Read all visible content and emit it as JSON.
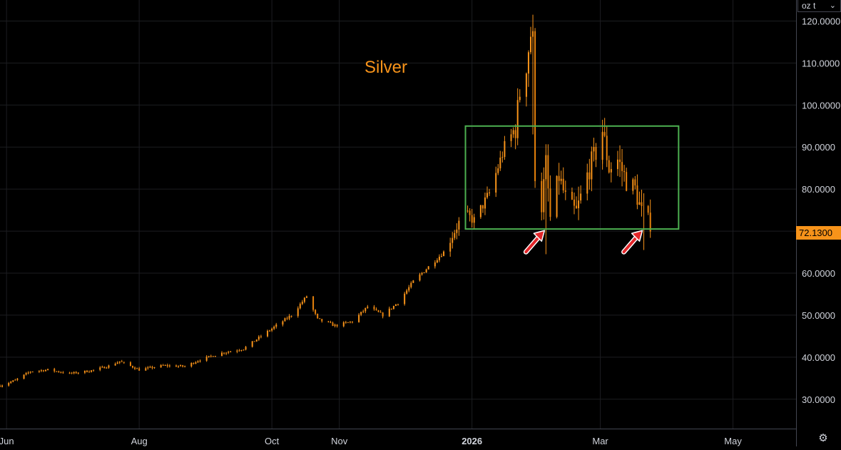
{
  "chart_data": {
    "type": "candlestick",
    "title": "Silver",
    "unit": "oz t",
    "last_price": "72.1300",
    "ylim": [
      23,
      125
    ],
    "y_ticks": [
      "30.0000",
      "40.0000",
      "50.0000",
      "60.0000",
      "70.0000",
      "80.0000",
      "90.0000",
      "100.0000",
      "110.0000",
      "120.0000"
    ],
    "y_tick_values": [
      30,
      40,
      50,
      60,
      70,
      80,
      90,
      100,
      110,
      120
    ],
    "x_ticks": [
      {
        "label": "Jun",
        "date": "2025-06-01"
      },
      {
        "label": "Aug",
        "date": "2025-08-01"
      },
      {
        "label": "Oct",
        "date": "2025-10-01"
      },
      {
        "label": "Nov",
        "date": "2025-11-01"
      },
      {
        "label": "2026",
        "date": "2026-01-01",
        "bold": true
      },
      {
        "label": "Mar",
        "date": "2026-03-01"
      },
      {
        "label": "May",
        "date": "2026-05-01"
      }
    ],
    "xlim": [
      "2025-05-29",
      "2026-05-30"
    ],
    "grid": true,
    "legend": "none",
    "range_box": {
      "x_start": "2025-12-29",
      "x_end": "2026-04-06",
      "y_low": 70.5,
      "y_high": 95
    },
    "arrows": [
      {
        "date": "2026-02-04",
        "price": 71.5
      },
      {
        "date": "2026-03-21",
        "price": 71.5
      }
    ],
    "anchors": [
      [
        "2025-05-29",
        33.2
      ],
      [
        "2025-06-05",
        34.5
      ],
      [
        "2025-06-12",
        36.6
      ],
      [
        "2025-06-20",
        37.0
      ],
      [
        "2025-06-30",
        36.1
      ],
      [
        "2025-07-10",
        36.8
      ],
      [
        "2025-07-18",
        37.9
      ],
      [
        "2025-07-23",
        39.0
      ],
      [
        "2025-08-01",
        37.0
      ],
      [
        "2025-08-12",
        38.0
      ],
      [
        "2025-08-22",
        37.8
      ],
      [
        "2025-08-29",
        39.4
      ],
      [
        "2025-09-08",
        41.0
      ],
      [
        "2025-09-18",
        42.0
      ],
      [
        "2025-09-26",
        45.0
      ],
      [
        "2025-10-03",
        47.5
      ],
      [
        "2025-10-10",
        50.0
      ],
      [
        "2025-10-17",
        54.5
      ],
      [
        "2025-10-22",
        49.0
      ],
      [
        "2025-10-30",
        47.5
      ],
      [
        "2025-11-07",
        48.5
      ],
      [
        "2025-11-14",
        52.0
      ],
      [
        "2025-11-21",
        50.0
      ],
      [
        "2025-11-28",
        53.0
      ],
      [
        "2025-12-05",
        58.0
      ],
      [
        "2025-12-12",
        61.5
      ],
      [
        "2025-12-19",
        65.0
      ],
      [
        "2025-12-26",
        72.0
      ],
      [
        "2025-12-29",
        74.0
      ],
      [
        "2026-01-02",
        72.5
      ],
      [
        "2026-01-09",
        79.0
      ],
      [
        "2026-01-16",
        90.0
      ],
      [
        "2026-01-21",
        94.5
      ],
      [
        "2026-01-23",
        103.0
      ],
      [
        "2026-01-26",
        110.0
      ],
      [
        "2026-01-28",
        117.0
      ],
      [
        "2026-01-29",
        115.0
      ],
      [
        "2026-01-30",
        84.0
      ],
      [
        "2026-02-02",
        76.0
      ],
      [
        "2026-02-04",
        86.0
      ],
      [
        "2026-02-06",
        73.0
      ],
      [
        "2026-02-10",
        83.0
      ],
      [
        "2026-02-14",
        76.0
      ],
      [
        "2026-02-18",
        74.5
      ],
      [
        "2026-02-24",
        85.0
      ],
      [
        "2026-02-28",
        90.0
      ],
      [
        "2026-03-02",
        94.0
      ],
      [
        "2026-03-05",
        85.0
      ],
      [
        "2026-03-09",
        87.0
      ],
      [
        "2026-03-13",
        82.0
      ],
      [
        "2026-03-17",
        80.0
      ],
      [
        "2026-03-21",
        72.5
      ],
      [
        "2026-03-24",
        72.1
      ]
    ]
  }
}
